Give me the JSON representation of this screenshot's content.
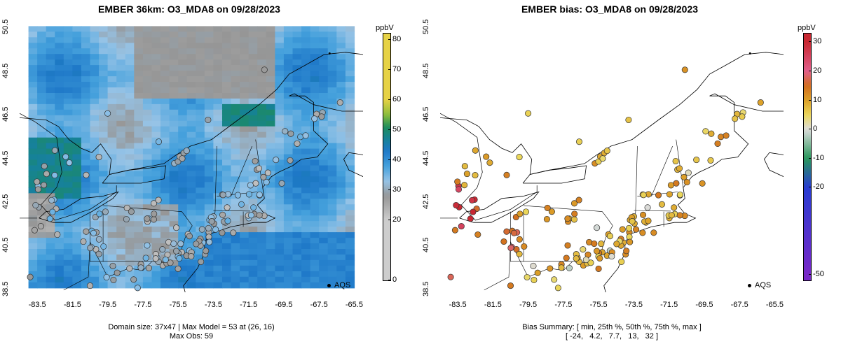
{
  "left": {
    "title": "EMBER 36km: O3_MDA8 on 09/28/2023",
    "caption_line1": "Domain size: 37x47 | Max Model = 53 at (26, 16)",
    "caption_line2": "Max Obs: 59",
    "colorbar": {
      "unit": "ppbV",
      "ticks": [
        "0",
        "20",
        "30",
        "40",
        "50",
        "60",
        "70",
        "80"
      ],
      "range": [
        0,
        82
      ]
    },
    "legend_label": "AQS"
  },
  "right": {
    "title": "EMBER bias: O3_MDA8 on 09/28/2023",
    "caption_line1": "Bias Summary: [ min, 25th %, 50th %, 75th %, max ]",
    "caption_line2": "[ -24,   4.2,   7.7,   13,   32 ]",
    "colorbar": {
      "unit": "ppbV",
      "ticks": [
        "30",
        "20",
        "10",
        "0",
        "-10",
        "-20",
        "-50"
      ],
      "range": [
        -52,
        33
      ]
    },
    "legend_label": "AQS"
  },
  "axes": {
    "x_ticks": [
      "-83.5",
      "-81.5",
      "-79.5",
      "-77.5",
      "-75.5",
      "-73.5",
      "-71.5",
      "-69.5",
      "-67.5",
      "-65.5"
    ],
    "y_ticks": [
      "38.5",
      "40.5",
      "42.5",
      "44.5",
      "46.5",
      "48.5",
      "50.5"
    ],
    "xlim": [
      -84.5,
      -65.0
    ],
    "ylim": [
      38.3,
      50.8
    ]
  },
  "chart_data": [
    {
      "type": "heatmap",
      "title": "EMBER 36km: O3_MDA8 on 09/28/2023",
      "unit": "ppbV",
      "value_range": [
        0,
        82
      ],
      "grid_size": [
        37,
        47
      ],
      "max_model": 53,
      "max_obs": 59
    },
    {
      "type": "scatter",
      "title": "EMBER bias: O3_MDA8 on 09/28/2023",
      "unit": "ppbV",
      "value_range": [
        -52,
        33
      ],
      "summary": {
        "min": -24,
        "p25": 4.2,
        "p50": 7.7,
        "p75": 13,
        "max": 32
      }
    }
  ]
}
